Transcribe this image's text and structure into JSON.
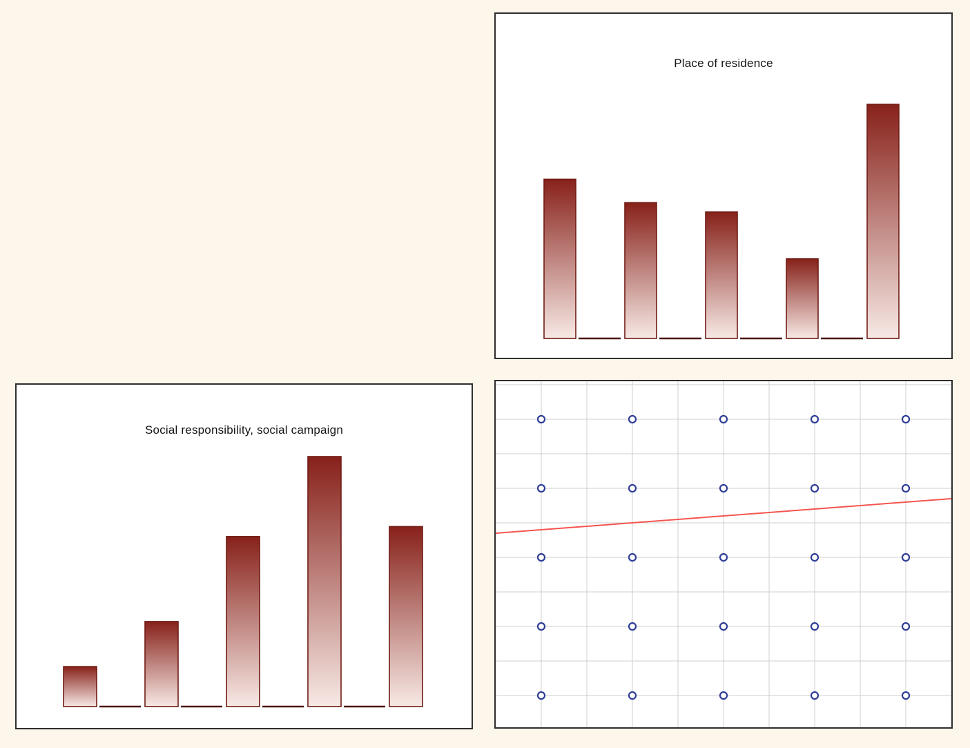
{
  "page": {
    "background": "#fcf7ea"
  },
  "colors": {
    "page_background": "#fcf7ea",
    "panel_border": "#2e2e2e",
    "bar_gradient_top": "#87211a",
    "bar_gradient_bottom": "#f7e9e5",
    "bar_border": "#701c15",
    "baseline_segment": "#4a100c",
    "grid_line": "#cfcfcf",
    "scatter_marker": "#2e3d96",
    "trend_line": "#f4554f"
  },
  "panels": {
    "residence": {
      "title": "Place of residence"
    },
    "social": {
      "title": "Social responsibility, social campaign"
    },
    "scatter": {
      "title": ""
    }
  },
  "chart_data": [
    {
      "type": "bar",
      "title": "Place of residence",
      "values": [
        34,
        29,
        27,
        17,
        50
      ],
      "bars": 5,
      "ylim": [
        0,
        50
      ],
      "tick_labels_visible": false,
      "axis_lines": "segmented baseline between bars",
      "fill": "vertical gradient dark-red (top) to pale-pink (bottom)",
      "legend": "none",
      "grid": "off"
    },
    {
      "type": "bar",
      "title": "Social responsibility, social campaign",
      "values": [
        8,
        17,
        34,
        50,
        36
      ],
      "bars": 5,
      "ylim": [
        0,
        50
      ],
      "tick_labels_visible": false,
      "axis_lines": "segmented baseline between bars",
      "fill": "vertical gradient dark-red (top) to pale-pink (bottom)",
      "legend": "none",
      "grid": "off"
    },
    {
      "type": "scatter",
      "title": "",
      "x_levels": [
        1,
        2,
        3,
        4,
        5
      ],
      "y_levels": [
        1,
        2,
        3,
        4,
        5
      ],
      "points": [
        [
          1,
          1
        ],
        [
          1,
          2
        ],
        [
          1,
          3
        ],
        [
          1,
          4
        ],
        [
          1,
          5
        ],
        [
          2,
          1
        ],
        [
          2,
          2
        ],
        [
          2,
          3
        ],
        [
          2,
          4
        ],
        [
          2,
          5
        ],
        [
          3,
          1
        ],
        [
          3,
          2
        ],
        [
          3,
          3
        ],
        [
          3,
          4
        ],
        [
          3,
          5
        ],
        [
          4,
          1
        ],
        [
          4,
          2
        ],
        [
          4,
          3
        ],
        [
          4,
          4
        ],
        [
          4,
          5
        ],
        [
          5,
          1
        ],
        [
          5,
          2
        ],
        [
          5,
          3
        ],
        [
          5,
          4
        ],
        [
          5,
          5
        ]
      ],
      "marker": "open-circle",
      "marker_color": "#2e3d96",
      "trendline": {
        "x": [
          0.5,
          5.5
        ],
        "y": [
          3.35,
          3.85
        ]
      },
      "trend_color": "#f4554f",
      "grid": "on",
      "tick_labels_visible": false,
      "legend": "none"
    }
  ]
}
